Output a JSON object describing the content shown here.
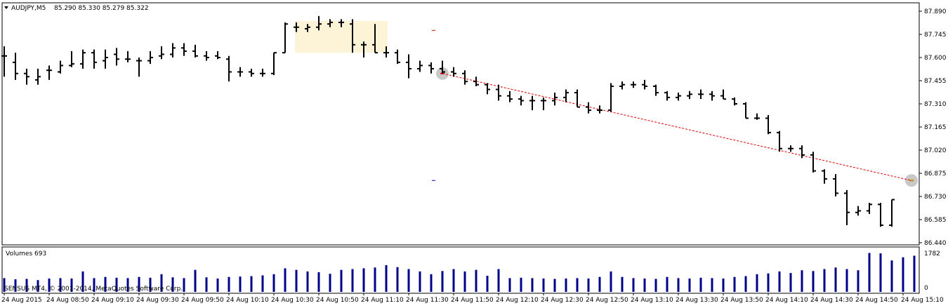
{
  "chart_data": [
    {
      "type": "ohlc",
      "symbol_label": "AUDJPY,M5",
      "ohlc_label": "85.290 85.330 85.279 85.322",
      "colors": {
        "bars": "#000000",
        "highlight": "#fdf3d7",
        "trade_line": "#e00000",
        "buy_marker": "#e00000",
        "sell_marker": "#0000c0",
        "markers": "#c8c8c8"
      },
      "ylim": [
        86.44,
        87.89
      ],
      "y_ticks": [
        "87.890",
        "87.745",
        "87.600",
        "87.455",
        "87.310",
        "87.165",
        "87.020",
        "86.875",
        "86.730",
        "86.585",
        "86.440"
      ],
      "y_tick_values": [
        87.89,
        87.745,
        87.6,
        87.455,
        87.31,
        87.165,
        87.02,
        86.875,
        86.73,
        86.585,
        86.44
      ],
      "x_labels": [
        "24 Aug 2015",
        "24 Aug 08:50",
        "24 Aug 09:10",
        "24 Aug 09:30",
        "24 Aug 09:50",
        "24 Aug 10:10",
        "24 Aug 10:30",
        "24 Aug 10:50",
        "24 Aug 11:10",
        "24 Aug 11:30",
        "24 Aug 11:50",
        "24 Aug 12:10",
        "24 Aug 12:30",
        "24 Aug 12:50",
        "24 Aug 13:10",
        "24 Aug 13:30",
        "24 Aug 13:50",
        "24 Aug 14:10",
        "24 Aug 14:30",
        "24 Aug 14:50",
        "24 Aug 15:10"
      ],
      "x_label_bar_index": [
        0,
        4,
        8,
        12,
        16,
        20,
        24,
        28,
        32,
        36,
        40,
        44,
        48,
        52,
        56,
        60,
        64,
        68,
        72,
        76,
        80
      ],
      "bars": [
        {
          "o": 87.61,
          "h": 87.67,
          "l": 87.48,
          "c": 87.61
        },
        {
          "o": 87.57,
          "h": 87.63,
          "l": 87.46,
          "c": 87.5
        },
        {
          "o": 87.5,
          "h": 87.53,
          "l": 87.43,
          "c": 87.48
        },
        {
          "o": 87.46,
          "h": 87.53,
          "l": 87.43,
          "c": 87.48
        },
        {
          "o": 87.52,
          "h": 87.55,
          "l": 87.46,
          "c": 87.52
        },
        {
          "o": 87.51,
          "h": 87.58,
          "l": 87.5,
          "c": 87.55
        },
        {
          "o": 87.55,
          "h": 87.64,
          "l": 87.54,
          "c": 87.56
        },
        {
          "o": 87.56,
          "h": 87.65,
          "l": 87.53,
          "c": 87.63
        },
        {
          "o": 87.63,
          "h": 87.65,
          "l": 87.53,
          "c": 87.57
        },
        {
          "o": 87.58,
          "h": 87.65,
          "l": 87.53,
          "c": 87.6
        },
        {
          "o": 87.62,
          "h": 87.66,
          "l": 87.55,
          "c": 87.59
        },
        {
          "o": 87.59,
          "h": 87.64,
          "l": 87.57,
          "c": 87.59
        },
        {
          "o": 87.58,
          "h": 87.6,
          "l": 87.48,
          "c": 87.58
        },
        {
          "o": 87.58,
          "h": 87.64,
          "l": 87.56,
          "c": 87.6
        },
        {
          "o": 87.61,
          "h": 87.67,
          "l": 87.59,
          "c": 87.62
        },
        {
          "o": 87.62,
          "h": 87.69,
          "l": 87.6,
          "c": 87.66
        },
        {
          "o": 87.66,
          "h": 87.69,
          "l": 87.61,
          "c": 87.64
        },
        {
          "o": 87.64,
          "h": 87.68,
          "l": 87.6,
          "c": 87.61
        },
        {
          "o": 87.61,
          "h": 87.64,
          "l": 87.58,
          "c": 87.6
        },
        {
          "o": 87.61,
          "h": 87.64,
          "l": 87.59,
          "c": 87.6
        },
        {
          "o": 87.59,
          "h": 87.61,
          "l": 87.45,
          "c": 87.51
        },
        {
          "o": 87.51,
          "h": 87.54,
          "l": 87.48,
          "c": 87.51
        },
        {
          "o": 87.51,
          "h": 87.53,
          "l": 87.48,
          "c": 87.5
        },
        {
          "o": 87.5,
          "h": 87.53,
          "l": 87.48,
          "c": 87.5
        },
        {
          "o": 87.5,
          "h": 87.63,
          "l": 87.49,
          "c": 87.63
        },
        {
          "o": 87.63,
          "h": 87.82,
          "l": 87.63,
          "c": 87.81
        },
        {
          "o": 87.79,
          "h": 87.82,
          "l": 87.76,
          "c": 87.79
        },
        {
          "o": 87.78,
          "h": 87.81,
          "l": 87.76,
          "c": 87.79
        },
        {
          "o": 87.79,
          "h": 87.86,
          "l": 87.77,
          "c": 87.81
        },
        {
          "o": 87.81,
          "h": 87.84,
          "l": 87.79,
          "c": 87.82
        },
        {
          "o": 87.82,
          "h": 87.84,
          "l": 87.79,
          "c": 87.82
        },
        {
          "o": 87.81,
          "h": 87.84,
          "l": 87.63,
          "c": 87.68
        },
        {
          "o": 87.68,
          "h": 87.7,
          "l": 87.6,
          "c": 87.68
        },
        {
          "o": 87.68,
          "h": 87.81,
          "l": 87.63,
          "c": 87.63
        },
        {
          "o": 87.63,
          "h": 87.67,
          "l": 87.6,
          "c": 87.63
        },
        {
          "o": 87.63,
          "h": 87.65,
          "l": 87.56,
          "c": 87.57
        },
        {
          "o": 87.57,
          "h": 87.62,
          "l": 87.47,
          "c": 87.53
        },
        {
          "o": 87.53,
          "h": 87.58,
          "l": 87.51,
          "c": 87.55
        },
        {
          "o": 87.55,
          "h": 87.57,
          "l": 87.5,
          "c": 87.53
        },
        {
          "o": 87.53,
          "h": 87.58,
          "l": 87.5,
          "c": 87.51
        },
        {
          "o": 87.51,
          "h": 87.54,
          "l": 87.48,
          "c": 87.5
        },
        {
          "o": 87.5,
          "h": 87.52,
          "l": 87.43,
          "c": 87.45
        },
        {
          "o": 87.45,
          "h": 87.48,
          "l": 87.42,
          "c": 87.43
        },
        {
          "o": 87.43,
          "h": 87.44,
          "l": 87.37,
          "c": 87.4
        },
        {
          "o": 87.4,
          "h": 87.43,
          "l": 87.33,
          "c": 87.36
        },
        {
          "o": 87.36,
          "h": 87.39,
          "l": 87.32,
          "c": 87.34
        },
        {
          "o": 87.34,
          "h": 87.36,
          "l": 87.3,
          "c": 87.33
        },
        {
          "o": 87.33,
          "h": 87.36,
          "l": 87.27,
          "c": 87.33
        },
        {
          "o": 87.33,
          "h": 87.35,
          "l": 87.27,
          "c": 87.33
        },
        {
          "o": 87.33,
          "h": 87.38,
          "l": 87.3,
          "c": 87.35
        },
        {
          "o": 87.35,
          "h": 87.4,
          "l": 87.32,
          "c": 87.38
        },
        {
          "o": 87.38,
          "h": 87.4,
          "l": 87.29,
          "c": 87.29
        },
        {
          "o": 87.29,
          "h": 87.32,
          "l": 87.25,
          "c": 87.27
        },
        {
          "o": 87.27,
          "h": 87.3,
          "l": 87.25,
          "c": 87.27
        },
        {
          "o": 87.27,
          "h": 87.44,
          "l": 87.26,
          "c": 87.42
        },
        {
          "o": 87.42,
          "h": 87.45,
          "l": 87.4,
          "c": 87.43
        },
        {
          "o": 87.43,
          "h": 87.45,
          "l": 87.41,
          "c": 87.43
        },
        {
          "o": 87.43,
          "h": 87.46,
          "l": 87.4,
          "c": 87.42
        },
        {
          "o": 87.42,
          "h": 87.43,
          "l": 87.36,
          "c": 87.38
        },
        {
          "o": 87.38,
          "h": 87.39,
          "l": 87.33,
          "c": 87.35
        },
        {
          "o": 87.35,
          "h": 87.38,
          "l": 87.33,
          "c": 87.36
        },
        {
          "o": 87.36,
          "h": 87.39,
          "l": 87.34,
          "c": 87.37
        },
        {
          "o": 87.37,
          "h": 87.4,
          "l": 87.34,
          "c": 87.37
        },
        {
          "o": 87.37,
          "h": 87.39,
          "l": 87.33,
          "c": 87.36
        },
        {
          "o": 87.36,
          "h": 87.4,
          "l": 87.34,
          "c": 87.34
        },
        {
          "o": 87.34,
          "h": 87.35,
          "l": 87.3,
          "c": 87.31
        },
        {
          "o": 87.31,
          "h": 87.32,
          "l": 87.22,
          "c": 87.22
        },
        {
          "o": 87.22,
          "h": 87.25,
          "l": 87.21,
          "c": 87.22
        },
        {
          "o": 87.22,
          "h": 87.24,
          "l": 87.12,
          "c": 87.13
        },
        {
          "o": 87.13,
          "h": 87.14,
          "l": 87.01,
          "c": 87.03
        },
        {
          "o": 87.03,
          "h": 87.05,
          "l": 87.01,
          "c": 87.03
        },
        {
          "o": 87.03,
          "h": 87.05,
          "l": 86.97,
          "c": 86.99
        },
        {
          "o": 86.99,
          "h": 87.01,
          "l": 86.88,
          "c": 86.89
        },
        {
          "o": 86.89,
          "h": 86.9,
          "l": 86.81,
          "c": 86.84
        },
        {
          "o": 86.84,
          "h": 86.87,
          "l": 86.73,
          "c": 86.75
        },
        {
          "o": 86.75,
          "h": 86.77,
          "l": 86.55,
          "c": 86.63
        },
        {
          "o": 86.63,
          "h": 86.67,
          "l": 86.61,
          "c": 86.64
        },
        {
          "o": 86.64,
          "h": 86.69,
          "l": 86.62,
          "c": 86.68
        },
        {
          "o": 86.68,
          "h": 86.69,
          "l": 86.54,
          "c": 86.55
        },
        {
          "o": 86.55,
          "h": 86.71,
          "l": 86.54,
          "c": 86.71
        }
      ],
      "trade": {
        "entry_bar": 39,
        "entry_price": 87.5,
        "exit_bar": 81,
        "exit_price": 86.83,
        "buy_level": 87.77,
        "sell_level": 86.83
      },
      "highlight": {
        "from_bar": 26,
        "to_bar": 34,
        "low": 87.63,
        "high": 87.83
      }
    },
    {
      "type": "bar",
      "label": "Volumes 693",
      "color": "#00008b",
      "y_ticks": [
        "1782",
        "0"
      ],
      "ylim": [
        0,
        1782
      ]
    }
  ],
  "footer_text": "SENSUS MT4, © 2001-2014, MetaQuotes Software Corp."
}
